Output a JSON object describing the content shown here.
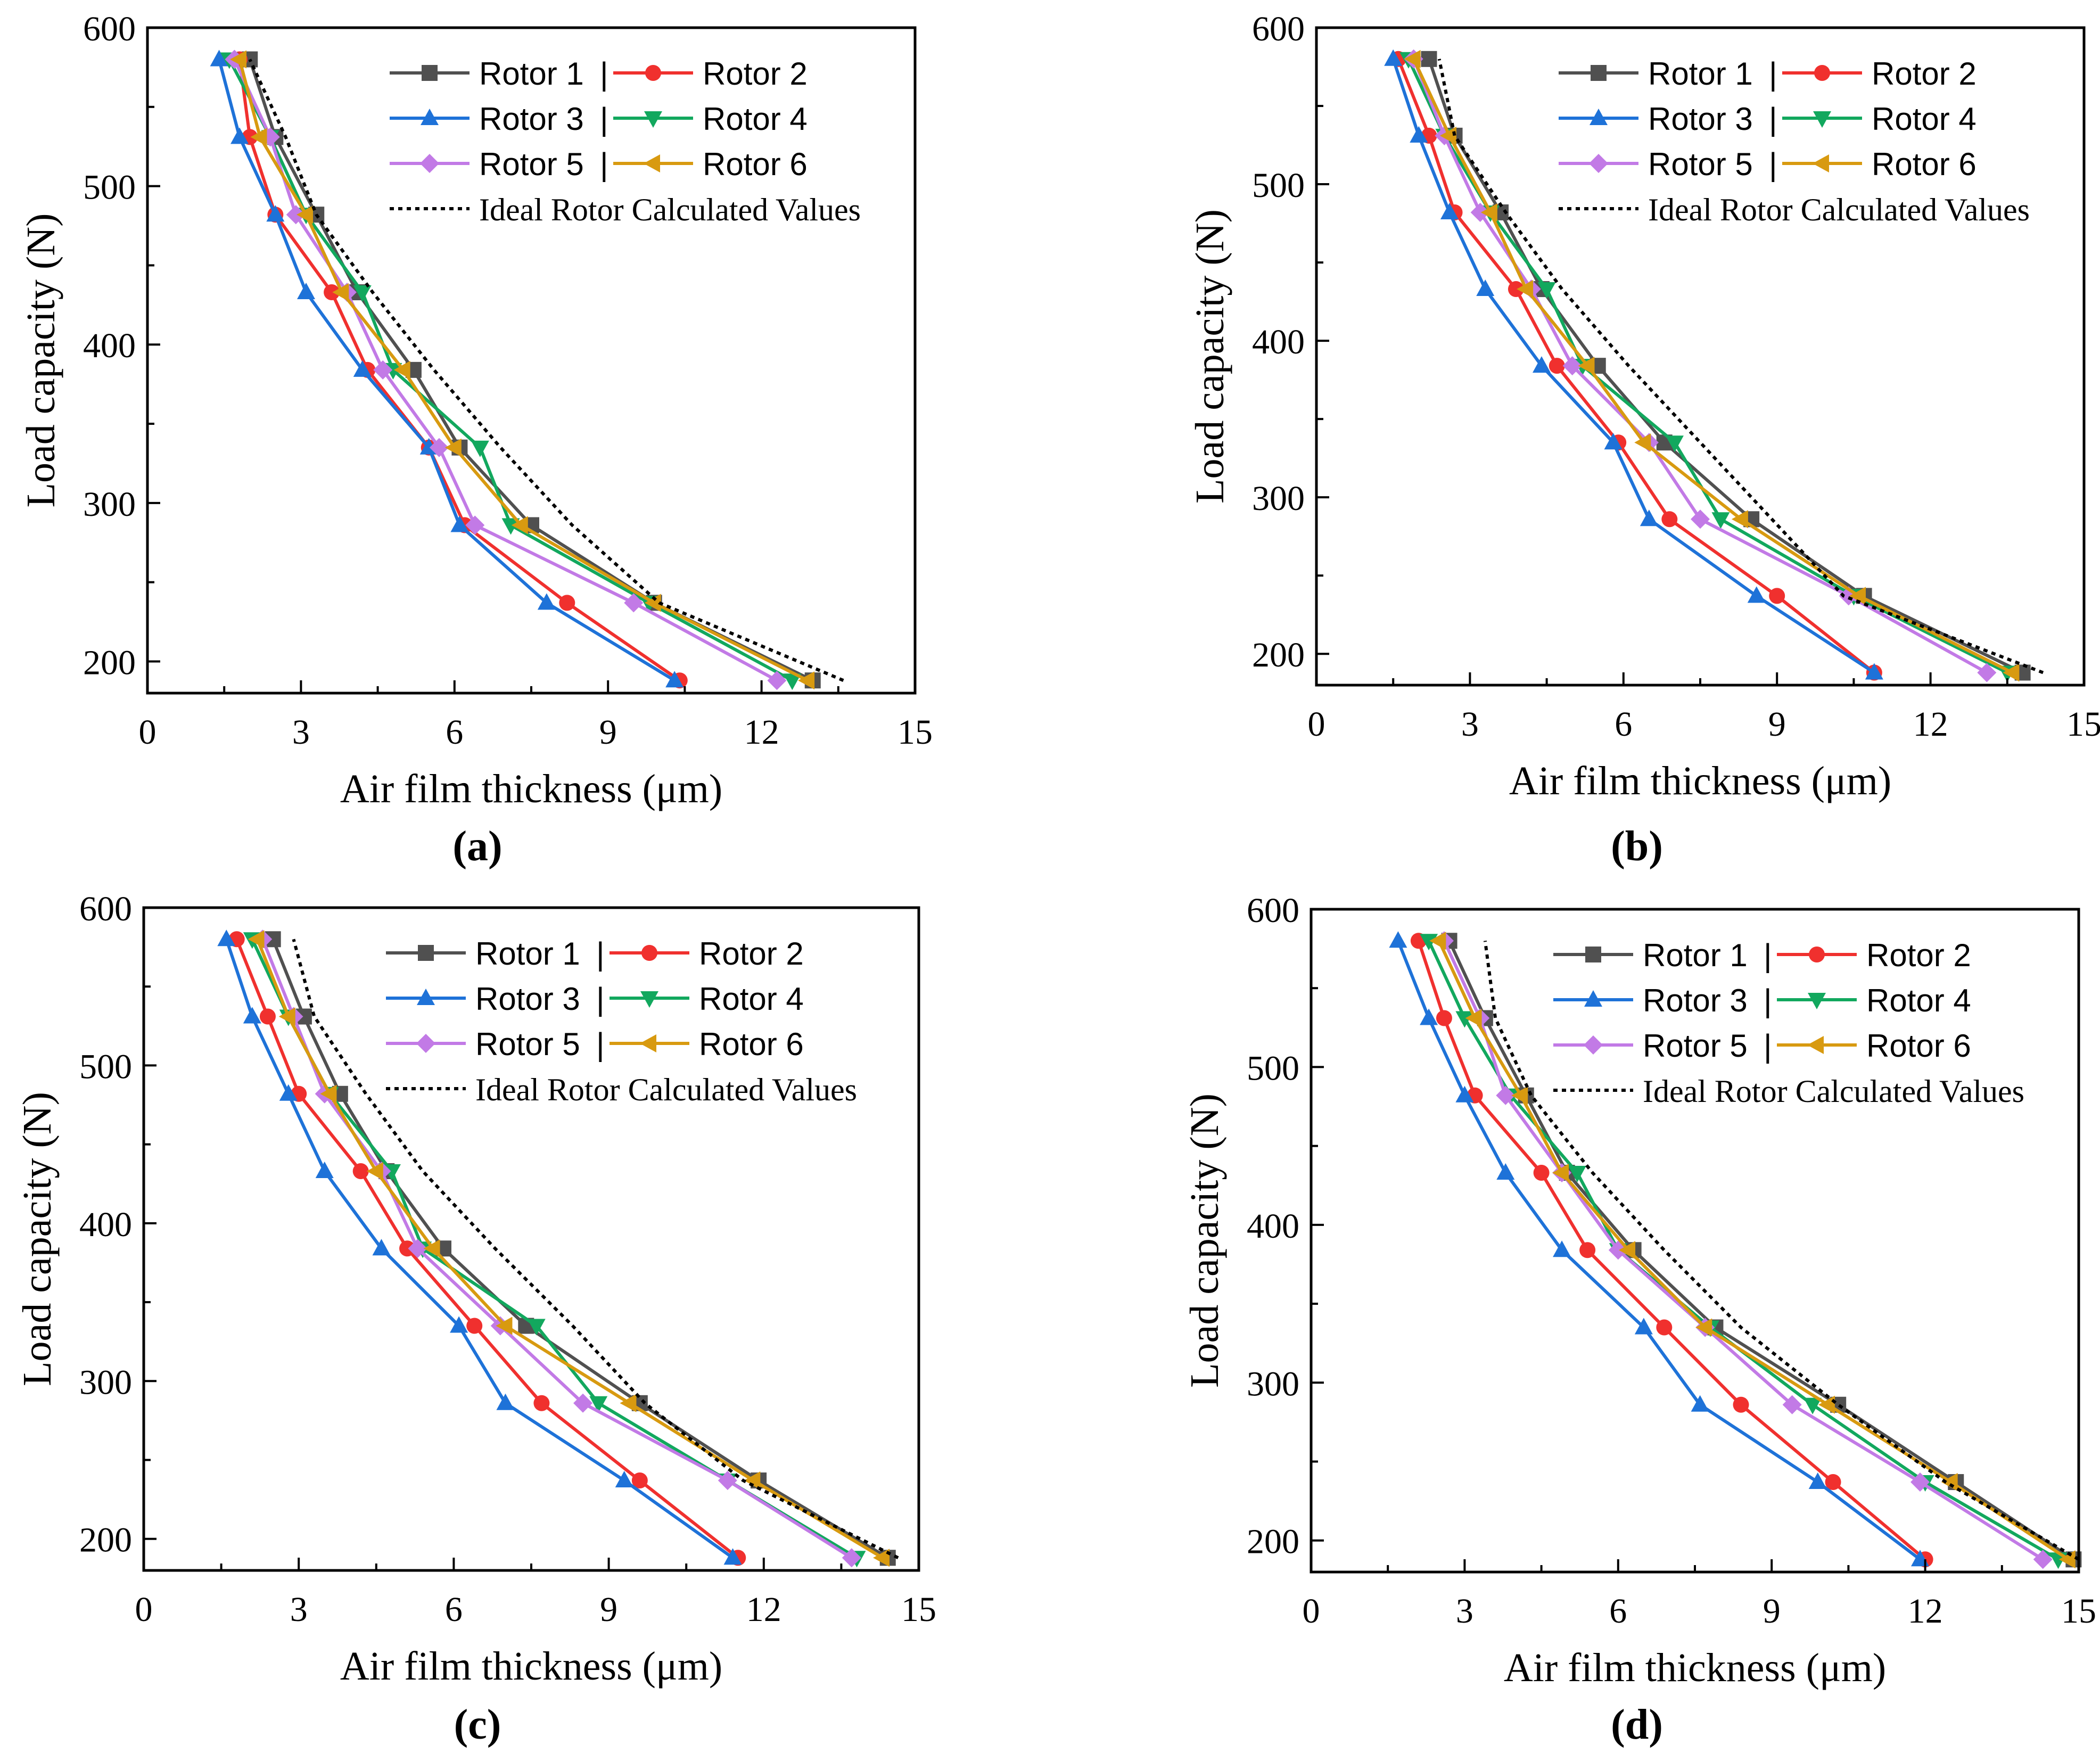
{
  "figure": {
    "panels": [
      "a",
      "b",
      "c",
      "d"
    ]
  },
  "legend_labels": {
    "rotor1": "Rotor 1",
    "rotor2": "Rotor 2",
    "rotor3": "Rotor 3",
    "rotor4": "Rotor 4",
    "rotor5": "Rotor 5",
    "rotor6": "Rotor 6",
    "separator": "|",
    "ideal": "Ideal Rotor Calculated Values"
  },
  "series_styles": [
    {
      "key": "rotor1",
      "color": "#505050",
      "marker": "square"
    },
    {
      "key": "rotor2",
      "color": "#f0302e",
      "marker": "circle"
    },
    {
      "key": "rotor3",
      "color": "#1e72d8",
      "marker": "triangle-up"
    },
    {
      "key": "rotor4",
      "color": "#12a85e",
      "marker": "triangle-down"
    },
    {
      "key": "rotor5",
      "color": "#c27ae6",
      "marker": "diamond"
    },
    {
      "key": "rotor6",
      "color": "#d89a10",
      "marker": "triangle-left"
    },
    {
      "key": "ideal",
      "color": "#000000",
      "marker": "none"
    }
  ],
  "chart_data": [
    {
      "type": "line",
      "panel": "a",
      "caption_label": "(a)",
      "xlabel": "Air film thickness (μm)",
      "ylabel": "Load capacity (N)",
      "xlim": [
        0,
        15
      ],
      "ylim": [
        180,
        600
      ],
      "xticks": [
        0,
        3,
        6,
        9,
        12,
        15
      ],
      "yticks": [
        200,
        300,
        400,
        500,
        600
      ],
      "loads": [
        188,
        237,
        286,
        335,
        384,
        433,
        482,
        531,
        580
      ],
      "series": [
        {
          "name": "Rotor 1",
          "x": [
            13.0,
            9.9,
            7.5,
            6.1,
            5.2,
            4.1,
            3.3,
            2.5,
            2.0
          ]
        },
        {
          "name": "Rotor 2",
          "x": [
            10.4,
            8.2,
            6.2,
            5.5,
            4.3,
            3.6,
            2.5,
            2.0,
            1.8
          ]
        },
        {
          "name": "Rotor 3",
          "x": [
            10.3,
            7.8,
            6.1,
            5.5,
            4.2,
            3.1,
            2.5,
            1.8,
            1.4
          ]
        },
        {
          "name": "Rotor 4",
          "x": [
            12.6,
            9.8,
            7.1,
            6.5,
            4.8,
            4.2,
            3.1,
            2.4,
            1.6
          ]
        },
        {
          "name": "Rotor 5",
          "x": [
            12.3,
            9.5,
            6.4,
            5.7,
            4.6,
            3.9,
            2.9,
            2.4,
            1.7
          ]
        },
        {
          "name": "Rotor 6",
          "x": [
            12.9,
            9.9,
            7.3,
            6.0,
            5.0,
            3.8,
            3.1,
            2.2,
            1.8
          ]
        },
        {
          "name": "Ideal Rotor Calculated Values",
          "x": [
            13.6,
            10.0,
            8.3,
            6.9,
            5.6,
            4.4,
            3.3,
            2.7,
            2.0
          ]
        }
      ]
    },
    {
      "type": "line",
      "panel": "b",
      "caption_label": "(b)",
      "xlabel": "Air film thickness (μm)",
      "ylabel": "Load capacity (N)",
      "xlim": [
        0,
        15
      ],
      "ylim": [
        180,
        600
      ],
      "xticks": [
        0,
        3,
        6,
        9,
        12,
        15
      ],
      "yticks": [
        200,
        300,
        400,
        500,
        600
      ],
      "loads": [
        188,
        237,
        286,
        335,
        384,
        433,
        482,
        531,
        580
      ],
      "series": [
        {
          "name": "Rotor 1",
          "x": [
            13.8,
            10.7,
            8.5,
            6.8,
            5.5,
            4.4,
            3.6,
            2.7,
            2.2
          ]
        },
        {
          "name": "Rotor 2",
          "x": [
            10.9,
            9.0,
            6.9,
            5.9,
            4.7,
            3.9,
            2.7,
            2.2,
            1.6
          ]
        },
        {
          "name": "Rotor 3",
          "x": [
            10.9,
            8.6,
            6.5,
            5.8,
            4.4,
            3.3,
            2.6,
            2.0,
            1.5
          ]
        },
        {
          "name": "Rotor 4",
          "x": [
            13.5,
            10.5,
            7.9,
            7.0,
            5.2,
            4.5,
            3.4,
            2.5,
            1.8
          ]
        },
        {
          "name": "Rotor 5",
          "x": [
            13.1,
            10.4,
            7.5,
            6.5,
            5.0,
            4.2,
            3.2,
            2.5,
            1.9
          ]
        },
        {
          "name": "Rotor 6",
          "x": [
            13.6,
            10.6,
            8.3,
            6.4,
            5.3,
            4.1,
            3.4,
            2.6,
            1.9
          ]
        },
        {
          "name": "Ideal Rotor Calculated Values",
          "x": [
            14.2,
            10.3,
            8.9,
            7.5,
            6.1,
            4.8,
            3.7,
            2.7,
            2.4
          ]
        }
      ]
    },
    {
      "type": "line",
      "panel": "c",
      "caption_label": "(c)",
      "xlabel": "Air film thickness (μm)",
      "ylabel": "Load capacity (N)",
      "xlim": [
        0,
        15
      ],
      "ylim": [
        180,
        600
      ],
      "xticks": [
        0,
        3,
        6,
        9,
        12,
        15
      ],
      "yticks": [
        200,
        300,
        400,
        500,
        600
      ],
      "loads": [
        188,
        237,
        286,
        335,
        384,
        433,
        482,
        531,
        580
      ],
      "series": [
        {
          "name": "Rotor 1",
          "x": [
            14.4,
            11.9,
            9.6,
            7.4,
            5.8,
            4.7,
            3.8,
            3.1,
            2.5
          ]
        },
        {
          "name": "Rotor 2",
          "x": [
            11.5,
            9.6,
            7.7,
            6.4,
            5.1,
            4.2,
            3.0,
            2.4,
            1.8
          ]
        },
        {
          "name": "Rotor 3",
          "x": [
            11.4,
            9.3,
            7.0,
            6.1,
            4.6,
            3.5,
            2.8,
            2.1,
            1.6
          ]
        },
        {
          "name": "Rotor 4",
          "x": [
            13.8,
            11.3,
            8.8,
            7.6,
            5.4,
            4.8,
            3.6,
            2.8,
            2.1
          ]
        },
        {
          "name": "Rotor 5",
          "x": [
            13.7,
            11.3,
            8.5,
            6.9,
            5.3,
            4.6,
            3.5,
            2.9,
            2.3
          ]
        },
        {
          "name": "Rotor 6",
          "x": [
            14.3,
            11.8,
            9.4,
            7.0,
            5.6,
            4.5,
            3.6,
            2.8,
            2.2
          ]
        },
        {
          "name": "Ideal Rotor Calculated Values",
          "x": [
            14.6,
            11.6,
            9.7,
            8.3,
            6.8,
            5.4,
            4.3,
            3.3,
            2.9
          ]
        }
      ]
    },
    {
      "type": "line",
      "panel": "d",
      "caption_label": "(d)",
      "xlabel": "Air film thickness (μm)",
      "ylabel": "Load capacity (N)",
      "xlim": [
        0,
        15
      ],
      "ylim": [
        180,
        600
      ],
      "xticks": [
        0,
        3,
        6,
        9,
        12,
        15
      ],
      "yticks": [
        200,
        300,
        400,
        500,
        600
      ],
      "loads": [
        188,
        237,
        286,
        335,
        384,
        433,
        482,
        531,
        580
      ],
      "series": [
        {
          "name": "Rotor 1",
          "x": [
            14.9,
            12.6,
            10.3,
            7.9,
            6.3,
            5.0,
            4.2,
            3.4,
            2.7
          ]
        },
        {
          "name": "Rotor 2",
          "x": [
            12.0,
            10.2,
            8.4,
            6.9,
            5.4,
            4.5,
            3.2,
            2.6,
            2.1
          ]
        },
        {
          "name": "Rotor 3",
          "x": [
            11.9,
            9.9,
            7.6,
            6.5,
            4.9,
            3.8,
            3.0,
            2.3,
            1.7
          ]
        },
        {
          "name": "Rotor 4",
          "x": [
            14.6,
            12.0,
            9.8,
            7.8,
            6.0,
            5.2,
            3.9,
            3.0,
            2.3
          ]
        },
        {
          "name": "Rotor 5",
          "x": [
            14.3,
            11.9,
            9.4,
            7.7,
            6.0,
            4.9,
            3.8,
            3.3,
            2.6
          ]
        },
        {
          "name": "Rotor 6",
          "x": [
            14.8,
            12.5,
            10.1,
            7.7,
            6.2,
            4.9,
            4.1,
            3.2,
            2.5
          ]
        },
        {
          "name": "Ideal Rotor Calculated Values",
          "x": [
            15.0,
            12.4,
            10.3,
            8.4,
            6.9,
            5.5,
            4.3,
            3.6,
            3.4
          ]
        }
      ]
    }
  ]
}
